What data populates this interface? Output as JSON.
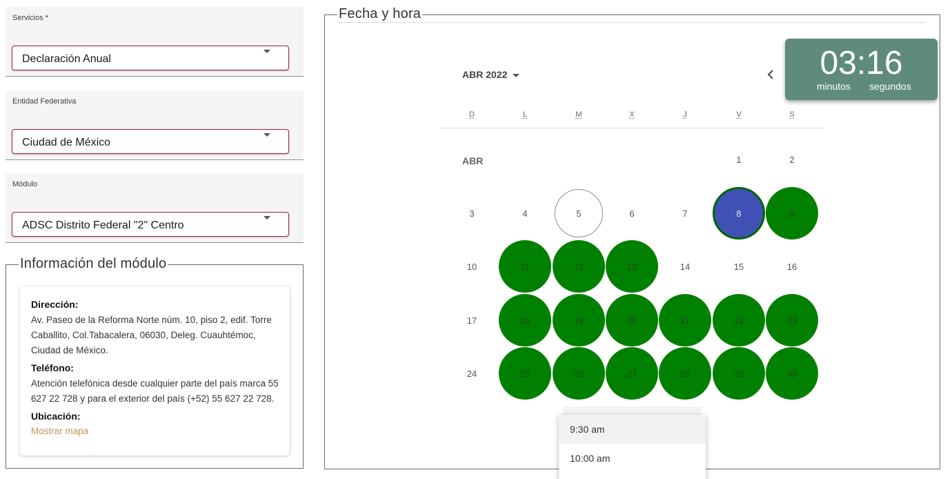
{
  "fields": [
    {
      "label": "Servicios *",
      "value": "Declaración Anual"
    },
    {
      "label": "Entidad Federativa",
      "value": "Ciudad de México"
    },
    {
      "label": "Módulo",
      "value": "ADSC Distrito Federal \"2\" Centro"
    }
  ],
  "info": {
    "legend": "Información del módulo",
    "address_label": "Dirección:",
    "address": "Av. Paseo de la Reforma Norte núm. 10, piso 2, edif. Torre Caballito, Col.Tabacalera, 06030, Deleg. Cuauhtémoc, Ciudad de México.",
    "phone_label": "Teléfono:",
    "phone": "Atención telefónica desde cualquier parte del país marca 55 627 22 728 y para el exterior del país (+52) 55 627 22 728.",
    "location_label": "Ubicación:",
    "map_link": "Mostrar mapa"
  },
  "calendar": {
    "legend": "Fecha y hora",
    "month_label": "ABR 2022",
    "month_short": "ABR",
    "weekdays": [
      "D",
      "L",
      "M",
      "X",
      "J",
      "V",
      "S"
    ],
    "days": [
      "1",
      "2",
      "3",
      "4",
      "5",
      "6",
      "7",
      "8",
      "9",
      "10",
      "11",
      "12",
      "13",
      "14",
      "15",
      "16",
      "17",
      "18",
      "19",
      "20",
      "21",
      "22",
      "23",
      "24",
      "25",
      "26",
      "27",
      "28",
      "29",
      "30"
    ],
    "first_weekday": 5,
    "available": [
      9,
      11,
      12,
      13,
      18,
      19,
      20,
      21,
      22,
      23,
      25,
      26,
      27,
      28,
      29,
      30
    ],
    "selected": 8,
    "today": 5
  },
  "timer": {
    "value": "03:16",
    "minutes_label": "minutos",
    "seconds_label": "segundos"
  },
  "time_options": [
    "9:30 am",
    "10:00 am"
  ],
  "colors": {
    "accent": "#9b2247",
    "available": "#008000",
    "selected": "#3f51b5",
    "timer_bg": "#5f8b7b",
    "link": "#bc955c"
  },
  "icons": {
    "select_caret": "caret-down-icon",
    "prev_month": "chevron-left-icon"
  }
}
